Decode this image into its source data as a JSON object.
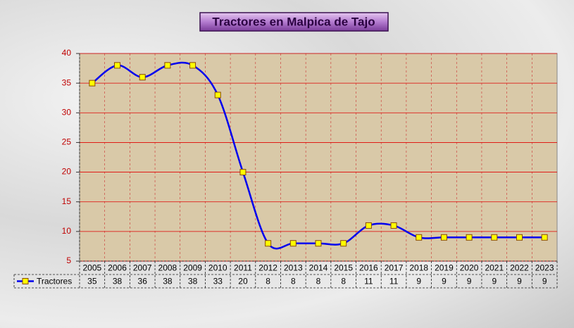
{
  "chart_data": {
    "type": "line",
    "title": "Tractores en Malpica de Tajo",
    "categories": [
      "2005",
      "2006",
      "2007",
      "2008",
      "2009",
      "2010",
      "2011",
      "2012",
      "2013",
      "2014",
      "2015",
      "2016",
      "2017",
      "2018",
      "2019",
      "2020",
      "2021",
      "2022",
      "2023"
    ],
    "series": [
      {
        "name": "Tractores",
        "color": "#0000ee",
        "marker_color": "#ffff00",
        "values": [
          35,
          38,
          36,
          38,
          38,
          33,
          20,
          8,
          8,
          8,
          8,
          11,
          11,
          9,
          9,
          9,
          9,
          9,
          9
        ]
      }
    ],
    "ylim": [
      5,
      40
    ],
    "yticks": [
      5,
      10,
      15,
      20,
      25,
      30,
      35,
      40
    ],
    "grid": true,
    "smooth": true,
    "data_table": true
  }
}
